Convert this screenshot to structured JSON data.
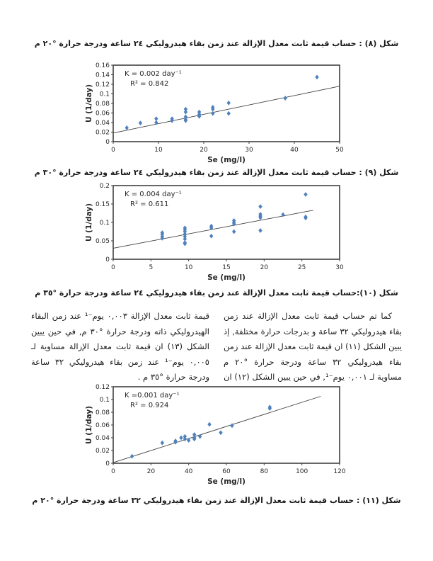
{
  "captions": {
    "fig8": "شكل (٨) : حساب قيمة ثابت معدل الإزالة عند زمن بقاء هيدروليكي ٢٤ ساعة ودرجة حرارة °٢٠ م",
    "fig9": "شكل (٩) : حساب قيمة ثابت معدل الإزالة عند زمن بقاء هيدروليكي ٢٤ ساعة ودرجة حرارة °٣٠ م",
    "fig10": "شكل (١٠):حساب قيمة ثابت معدل الإزالة عند زمن بقاء هيدروليكي ٢٤ ساعة ودرجة حرارة °٣٥ م",
    "fig11": "شكل (١١) : حساب قيمة ثابت معدل الإزالة عند زمن بقاء هيدروليكي ٣٢ ساعة ودرجة حرارة °٢٠ م"
  },
  "paragraph": {
    "right_column": "كما تم حساب قيمة ثابت معدل الإزالة عند زمن بقاء هيدروليكي ٣٢ ساعة و بدرجات حرارة مختلفة, إذ يبين الشكل (١١) ان قيمة ثابت معدل الإزالة عند زمن بقاء هيدروليكي ٣٢ ساعة ودرجة حرارة °٢٠ م مساوية لـ ٠,٠٠١ يوم⁻¹, في حين يبين الشكل (١٢) ان",
    "left_column": "قيمة ثابت معدل الإزالة ٠,٠٠٣ يوم⁻¹ عند زمن البقاء الهيدروليكي ذاته ودرجة حرارة °٣٠ م, في حين يبين الشكل (١٣) ان قيمة ثابت معدل الإزالة مساوية لـ ٠,٠٠٥ يوم⁻¹ عند زمن بقاء هيدروليكي ٣٢ ساعة ودرجة حرارة °٣٥ م ."
  },
  "chart_data": [
    {
      "type": "scatter",
      "xlabel": "Se (mg/l)",
      "ylabel": "U (1/day)",
      "xlim": [
        0,
        50
      ],
      "ylim": [
        0,
        0.16
      ],
      "xticks": [
        "0",
        "10",
        "20",
        "30",
        "40",
        "50"
      ],
      "yticks": [
        "0",
        "0.02",
        "0.04",
        "0.06",
        "0.08",
        "0.1",
        "0.12",
        "0.14",
        "0.16"
      ],
      "annotation_line1": "K = 0.002 day⁻¹",
      "annotation_line2": "R² = 0.842",
      "trendline": {
        "x1": 0,
        "y1": 0.018,
        "x2": 50,
        "y2": 0.116
      },
      "marker_color": "#4F81BD",
      "points": [
        [
          3,
          0.029
        ],
        [
          6,
          0.039
        ],
        [
          9.5,
          0.048
        ],
        [
          9.5,
          0.04
        ],
        [
          13,
          0.048
        ],
        [
          13,
          0.044
        ],
        [
          16,
          0.068
        ],
        [
          16,
          0.062
        ],
        [
          16,
          0.052
        ],
        [
          16,
          0.046
        ],
        [
          16,
          0.044
        ],
        [
          19,
          0.062
        ],
        [
          19,
          0.057
        ],
        [
          19,
          0.053
        ],
        [
          22,
          0.072
        ],
        [
          22,
          0.068
        ],
        [
          22,
          0.059
        ],
        [
          25.5,
          0.081
        ],
        [
          25.5,
          0.059
        ],
        [
          38,
          0.091
        ],
        [
          45,
          0.135
        ]
      ]
    },
    {
      "type": "scatter",
      "xlabel": "Se (mg/l)",
      "ylabel": "U (1/day)",
      "xlim": [
        0,
        30
      ],
      "ylim": [
        0,
        0.2
      ],
      "xticks": [
        "0",
        "5",
        "10",
        "15",
        "20",
        "25",
        "30"
      ],
      "yticks": [
        "0",
        "0.05",
        "0.1",
        "0.15",
        "0.2"
      ],
      "annotation_line1": "K = 0.004 day⁻¹",
      "annotation_line2": "R² = 0.611",
      "trendline": {
        "x1": 0,
        "y1": 0.03,
        "x2": 26.5,
        "y2": 0.133
      },
      "marker_color": "#4F81BD",
      "points": [
        [
          6.5,
          0.072
        ],
        [
          6.5,
          0.068
        ],
        [
          6.5,
          0.062
        ],
        [
          6.5,
          0.057
        ],
        [
          9.5,
          0.085
        ],
        [
          9.5,
          0.08
        ],
        [
          9.5,
          0.075
        ],
        [
          9.5,
          0.068
        ],
        [
          9.5,
          0.062
        ],
        [
          9.5,
          0.055
        ],
        [
          9.5,
          0.045
        ],
        [
          9.5,
          0.042
        ],
        [
          13,
          0.09
        ],
        [
          13,
          0.085
        ],
        [
          13,
          0.063
        ],
        [
          16,
          0.105
        ],
        [
          16,
          0.1
        ],
        [
          16,
          0.096
        ],
        [
          16,
          0.075
        ],
        [
          19.5,
          0.143
        ],
        [
          19.5,
          0.122
        ],
        [
          19.5,
          0.117
        ],
        [
          19.5,
          0.113
        ],
        [
          19.5,
          0.078
        ],
        [
          22.5,
          0.121
        ],
        [
          25.5,
          0.176
        ],
        [
          25.5,
          0.115
        ],
        [
          25.5,
          0.112
        ]
      ]
    },
    {
      "type": "scatter",
      "xlabel": "Se (mg/l)",
      "ylabel": "U (1/day)",
      "xlim": [
        0,
        120
      ],
      "ylim": [
        0,
        0.12
      ],
      "xticks": [
        "0",
        "20",
        "40",
        "60",
        "80",
        "100",
        "120"
      ],
      "yticks": [
        "0",
        "0.02",
        "0.04",
        "0.06",
        "0.08",
        "0.1",
        "0.12"
      ],
      "annotation_line1": "K =0.001 day⁻¹",
      "annotation_line2": "R² = 0.924",
      "trendline": {
        "x1": 0,
        "y1": 0.001,
        "x2": 110,
        "y2": 0.105
      },
      "marker_color": "#4F81BD",
      "points": [
        [
          10,
          0.011
        ],
        [
          26,
          0.032
        ],
        [
          33,
          0.035
        ],
        [
          33,
          0.033
        ],
        [
          36,
          0.04
        ],
        [
          38,
          0.042
        ],
        [
          38,
          0.038
        ],
        [
          40,
          0.036
        ],
        [
          43,
          0.045
        ],
        [
          43,
          0.04
        ],
        [
          43,
          0.038
        ],
        [
          46,
          0.042
        ],
        [
          51,
          0.061
        ],
        [
          57,
          0.048
        ],
        [
          63,
          0.059
        ],
        [
          83,
          0.088
        ],
        [
          83,
          0.086
        ]
      ]
    }
  ],
  "chart_style": {
    "frame_color": "#404040",
    "trend_color": "#404040",
    "text_color": "#262626"
  }
}
